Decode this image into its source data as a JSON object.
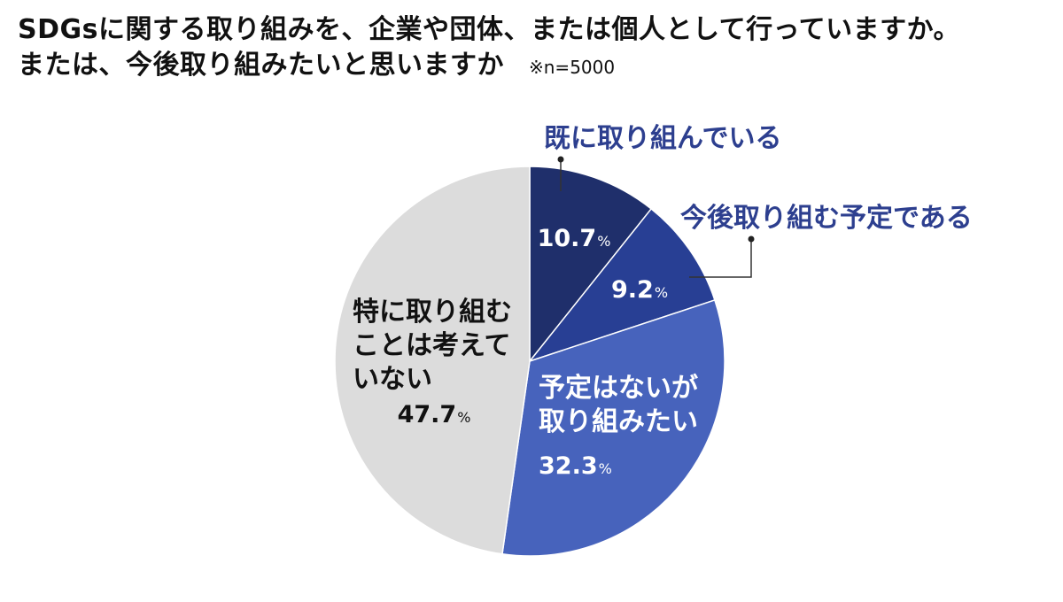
{
  "chart_title": {
    "line1": "SDGsに関する取り組みを、企業や団体、または個人として行っていますか。",
    "line2": "または、今後取り組みたいと思いますか",
    "note": "※n=5000"
  },
  "chart_data": {
    "type": "pie",
    "title": "SDGsに関する取り組みを、企業や団体、または個人として行っていますか。または、今後取り組みたいと思いますか",
    "unit": "%",
    "start": "12 o'clock, clockwise",
    "slices": [
      {
        "label": "既に取り組んでいる",
        "value": 10.7,
        "value_text": "10.7",
        "color": "#1f2f6b",
        "label_color": "#2d3f8f",
        "value_color": "#ffffff",
        "label_placement": "outside-callout"
      },
      {
        "label": "今後取り組む予定である",
        "value": 9.2,
        "value_text": "9.2",
        "color": "#283f94",
        "label_color": "#2d3f8f",
        "value_color": "#ffffff",
        "label_placement": "outside-callout"
      },
      {
        "label": "予定はないが\n取り組みたい",
        "value": 32.3,
        "value_text": "32.3",
        "color": "#4763bc",
        "label_color": "#ffffff",
        "value_color": "#ffffff",
        "label_placement": "inside"
      },
      {
        "label": "特に取り組む\nことは考えて\nいない",
        "value": 47.7,
        "value_text": "47.7",
        "color": "#dcdcdc",
        "label_color": "#111111",
        "value_color": "#111111",
        "label_placement": "inside"
      }
    ]
  }
}
